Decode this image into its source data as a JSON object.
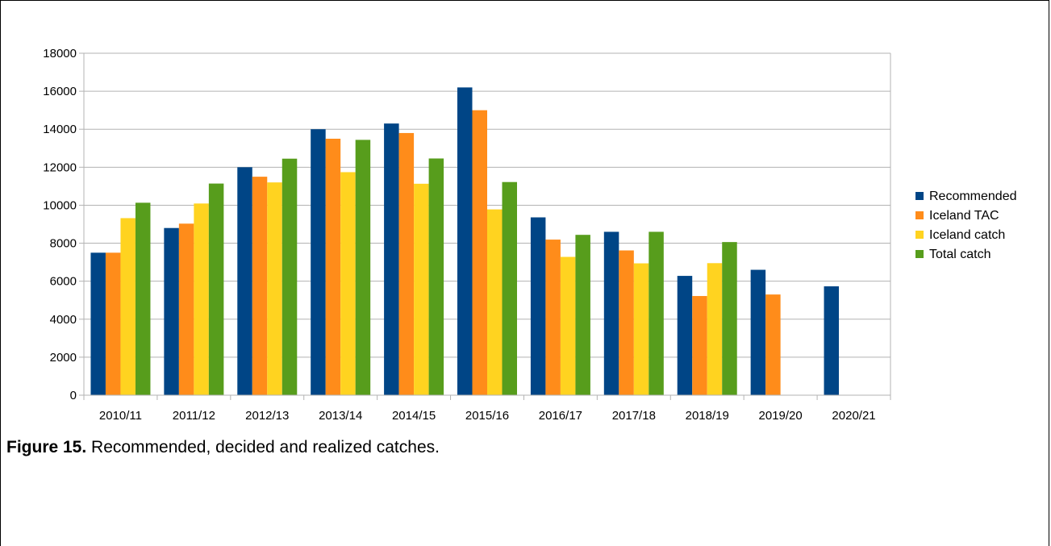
{
  "chart_data": {
    "type": "bar",
    "categories": [
      "2010/11",
      "2011/12",
      "2012/13",
      "2013/14",
      "2014/15",
      "2015/16",
      "2016/17",
      "2017/18",
      "2018/19",
      "2019/20",
      "2020/21"
    ],
    "series": [
      {
        "name": "Recommended",
        "color": "#004586",
        "values": [
          7500,
          8800,
          12000,
          14000,
          14300,
          16200,
          9360,
          8600,
          6280,
          6600,
          5730
        ]
      },
      {
        "name": "Iceland TAC",
        "color": "#ff8c1a",
        "values": [
          7500,
          9030,
          11500,
          13500,
          13800,
          15000,
          8190,
          7620,
          5220,
          5300,
          null
        ]
      },
      {
        "name": "Iceland catch",
        "color": "#ffd320",
        "values": [
          9320,
          10090,
          11200,
          11740,
          11130,
          9780,
          7280,
          6940,
          6950,
          null,
          null
        ]
      },
      {
        "name": "Total catch",
        "color": "#579d1c",
        "values": [
          10130,
          11140,
          12450,
          13440,
          12460,
          11220,
          8440,
          8600,
          8060,
          null,
          null
        ]
      }
    ],
    "ylim": [
      0,
      18000
    ],
    "yticks": [
      0,
      2000,
      4000,
      6000,
      8000,
      10000,
      12000,
      14000,
      16000,
      18000
    ],
    "grid": true,
    "legend_position": "right",
    "gridline_color": "#b3b3b3",
    "axis_color": "#b3b3b3"
  },
  "caption": {
    "label": "Figure 15.",
    "text": " Recommended, decided and realized catches."
  }
}
